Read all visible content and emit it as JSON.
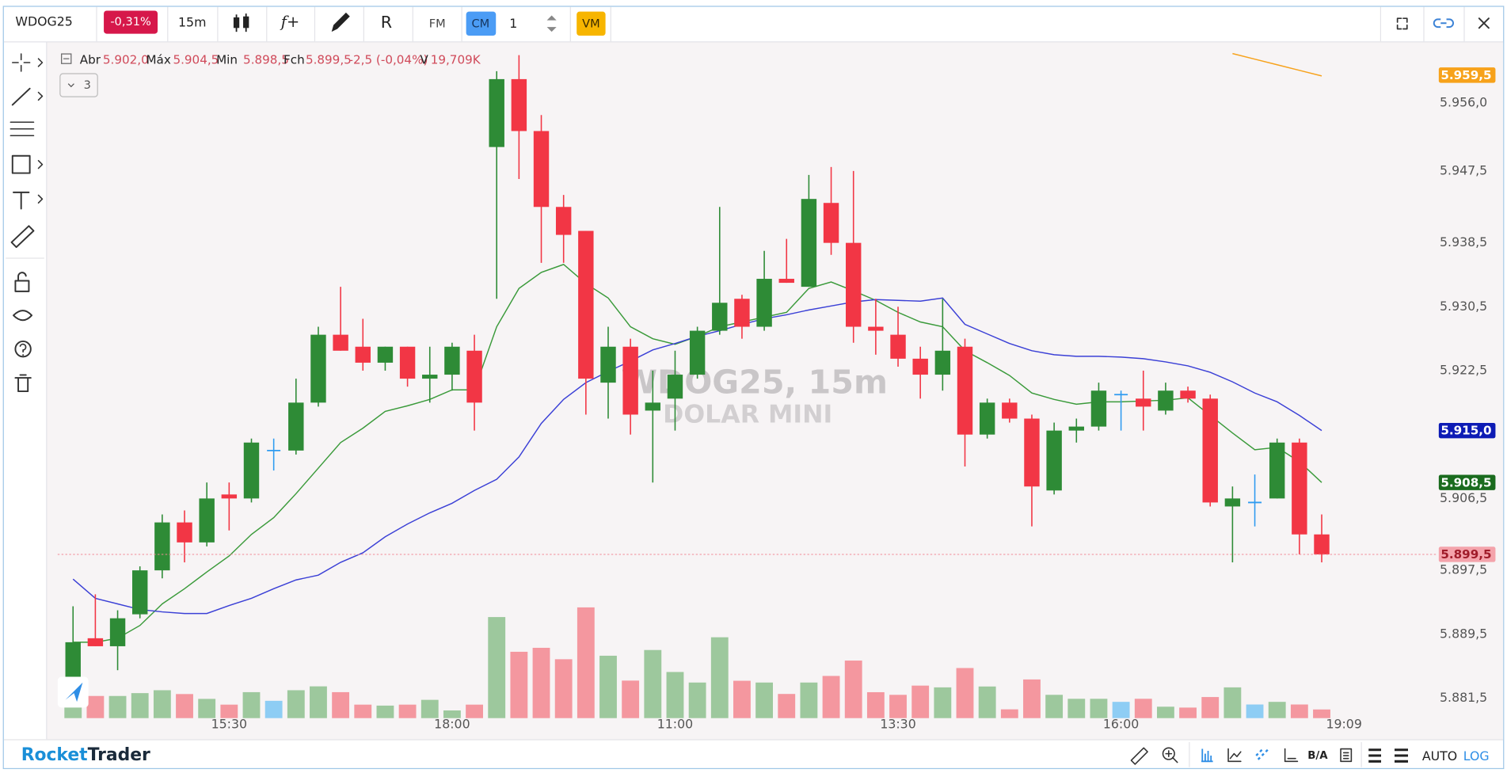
{
  "toolbar": {
    "symbol": "WDOG25",
    "change": "-0,31%",
    "interval": "15m",
    "indicator": "f+",
    "replay": "R",
    "fm": "FM",
    "cm": "CM",
    "count": "1",
    "vm": "VM"
  },
  "legend": {
    "open_label": "Abr",
    "open": "5.902,0",
    "high_label": "Máx",
    "high": "5.904,5",
    "low_label": "Min",
    "low": "5.898,5",
    "close_label": "Fch",
    "close": "5.899,5",
    "change": "-2,5 (-0,04%)",
    "volume_label": "V",
    "volume": "19,709K",
    "collapse": "3"
  },
  "watermark": {
    "title": "WDOG25, 15m",
    "subtitle": "DOLAR MINI"
  },
  "footer": {
    "brand_1": "Rocket",
    "brand_2": "Trader",
    "ba": "B/A",
    "auto": "AUTO",
    "log": "LOG"
  },
  "chart_data": {
    "type": "candlestick",
    "categories": [
      null,
      null,
      null,
      null,
      null,
      null,
      null,
      "15:30",
      null,
      null,
      null,
      null,
      null,
      null,
      null,
      null,
      null,
      "18:00",
      null,
      null,
      null,
      null,
      null,
      null,
      null,
      null,
      null,
      "11:00",
      null,
      null,
      null,
      null,
      null,
      null,
      null,
      null,
      null,
      "13:30",
      null,
      null,
      null,
      null,
      null,
      null,
      null,
      null,
      null,
      "16:00",
      null,
      null,
      null,
      null,
      null,
      null,
      null,
      null,
      null
    ],
    "current_time": "19:09",
    "open": [
      5884.0,
      5889.0,
      5888.0,
      5892.0,
      5897.5,
      5903.5,
      5901.0,
      5907.0,
      5906.5,
      5912.5,
      5912.5,
      5918.5,
      5927.0,
      5925.5,
      5923.5,
      5925.5,
      5921.5,
      5922.0,
      5925.0,
      5950.5,
      5959.0,
      5952.5,
      5943.0,
      5940.0,
      5921.0,
      5925.5,
      5917.5,
      5919.0,
      5922.0,
      5927.5,
      5931.5,
      5928.0,
      5934.0,
      5933.0,
      5943.5,
      5938.5,
      5928.0,
      5927.0,
      5924.0,
      5922.0,
      5925.5,
      5914.5,
      5918.5,
      5916.5,
      5907.5,
      5915.0,
      5915.5,
      5919.5,
      5919.0,
      5917.5,
      5920.0,
      5919.0,
      5905.5,
      5906.0,
      5906.5,
      5913.5,
      5902.0
    ],
    "high": [
      5893.0,
      5894.5,
      5892.5,
      5898.0,
      5904.5,
      5905.0,
      5908.5,
      5908.5,
      5914.0,
      5914.0,
      5921.5,
      5928.0,
      5933.0,
      5929.0,
      5925.5,
      5925.5,
      5925.5,
      5926.0,
      5927.0,
      5960.0,
      5962.0,
      5954.5,
      5944.5,
      5940.0,
      5928.0,
      5926.5,
      5922.5,
      5925.0,
      5928.0,
      5943.0,
      5932.0,
      5937.5,
      5939.0,
      5947.0,
      5948.0,
      5947.5,
      5931.5,
      5930.5,
      5925.5,
      5931.5,
      5926.5,
      5919.0,
      5919.0,
      5917.0,
      5916.0,
      5916.5,
      5921.0,
      5920.0,
      5922.5,
      5921.0,
      5920.5,
      5919.5,
      5908.0,
      5909.5,
      5914.0,
      5914.0,
      5904.5
    ],
    "low": [
      5884.0,
      5888.0,
      5885.0,
      5891.5,
      5896.5,
      5898.5,
      5900.5,
      5902.5,
      5906.0,
      5910.0,
      5912.0,
      5918.0,
      5925.0,
      5922.5,
      5922.5,
      5920.5,
      5918.5,
      5920.0,
      5915.0,
      5931.5,
      5946.5,
      5936.0,
      5936.0,
      5917.0,
      5916.5,
      5914.5,
      5908.5,
      5915.0,
      5921.5,
      5927.0,
      5926.5,
      5927.5,
      5933.5,
      5933.0,
      5937.0,
      5926.0,
      5924.5,
      5923.0,
      5919.0,
      5920.0,
      5910.5,
      5914.0,
      5916.0,
      5903.0,
      5907.0,
      5913.5,
      5915.0,
      5915.0,
      5915.0,
      5917.0,
      5918.5,
      5905.5,
      5898.5,
      5903.0,
      5906.5,
      5899.5,
      5898.5
    ],
    "close": [
      5888.5,
      5888.0,
      5891.5,
      5897.5,
      5903.5,
      5901.0,
      5906.5,
      5906.5,
      5913.5,
      5912.5,
      5918.5,
      5927.0,
      5925.0,
      5923.5,
      5925.5,
      5921.5,
      5922.0,
      5925.5,
      5918.5,
      5959.0,
      5952.5,
      5943.0,
      5939.5,
      5921.5,
      5925.5,
      5917.0,
      5918.5,
      5922.0,
      5927.5,
      5931.0,
      5928.0,
      5934.0,
      5933.5,
      5944.0,
      5938.5,
      5928.0,
      5927.5,
      5924.0,
      5922.0,
      5925.0,
      5914.5,
      5918.5,
      5916.5,
      5908.0,
      5915.0,
      5915.5,
      5920.0,
      5919.5,
      5918.0,
      5920.0,
      5919.0,
      5906.0,
      5906.5,
      5906.0,
      5913.5,
      5902.0,
      5899.5
    ],
    "volume": [
      30.7,
      50.4,
      50.4,
      56.9,
      63.5,
      54.8,
      43.8,
      30.7,
      59.1,
      39.4,
      63.5,
      72.3,
      59.1,
      30.7,
      28.5,
      30.7,
      41.6,
      17.5,
      30.7,
      230,
      151,
      160,
      134,
      252,
      142,
      85.4,
      155,
      105,
      81,
      184,
      85,
      81,
      55,
      81,
      96,
      131,
      59,
      53,
      74,
      70,
      114,
      72,
      20,
      88,
      53,
      44,
      44,
      37,
      44,
      26,
      24,
      48,
      70,
      31,
      37,
      31,
      19.709
    ],
    "vlim": [
      0,
      350
    ],
    "colors": {
      "up": "#2e8b36",
      "down": "#f23645",
      "flat": "#2f9bf0",
      "vol_up": "#9dc89d",
      "vol_down": "#f4979f",
      "vol_flat": "#8ecdf4"
    },
    "series": [
      {
        "color": "#3a9a3a",
        "values": [
          5888.5,
          5888.5,
          5889.0,
          5890.6,
          5893.3,
          5895.2,
          5897.3,
          5899.3,
          5902.0,
          5904.1,
          5907.1,
          5910.3,
          5913.5,
          5915.3,
          5917.4,
          5918.1,
          5918.9,
          5920.1,
          5920.1,
          5928.0,
          5932.8,
          5934.8,
          5935.8,
          5933.4,
          5931.6,
          5928.0,
          5926.5,
          5925.8,
          5926.8,
          5928.0,
          5928.6,
          5929.2,
          5929.8,
          5932.8,
          5933.6,
          5932.5,
          5931.3,
          5929.8,
          5928.6,
          5928.0,
          5925.0,
          5923.5,
          5921.9,
          5919.7,
          5918.9,
          5918.3,
          5918.6,
          5918.6,
          5918.7,
          5918.8,
          5919.1,
          5916.9,
          5914.7,
          5912.6,
          5912.9,
          5911.1,
          5908.5
        ]
      },
      {
        "color": "#3b40d6",
        "values": [
          5896.4,
          5894.0,
          5893.3,
          5892.6,
          5892.3,
          5892.1,
          5892.1,
          5893.1,
          5894.0,
          5895.2,
          5896.3,
          5896.9,
          5898.5,
          5899.7,
          5901.7,
          5903.3,
          5904.7,
          5905.9,
          5907.5,
          5908.9,
          5911.7,
          5915.9,
          5918.9,
          5921.0,
          5922.4,
          5923.7,
          5925.1,
          5925.9,
          5926.8,
          5927.5,
          5928.3,
          5929.0,
          5929.5,
          5930.1,
          5930.6,
          5931.1,
          5931.4,
          5931.3,
          5931.2,
          5931.6,
          5928.3,
          5927.1,
          5925.9,
          5925.0,
          5924.5,
          5924.3,
          5924.3,
          5924.2,
          5924.0,
          5923.6,
          5923.1,
          5922.3,
          5921.1,
          5919.7,
          5918.6,
          5916.9,
          5915.0
        ]
      },
      {
        "color": "#f7a21b",
        "values": [
          null,
          null,
          null,
          null,
          null,
          null,
          null,
          null,
          null,
          null,
          null,
          null,
          null,
          null,
          null,
          null,
          null,
          null,
          null,
          null,
          null,
          null,
          null,
          null,
          null,
          null,
          null,
          null,
          null,
          null,
          null,
          null,
          null,
          null,
          null,
          null,
          null,
          null,
          null,
          null,
          null,
          null,
          null,
          null,
          null,
          null,
          null,
          null,
          null,
          null,
          null,
          null,
          5962.2,
          5961.5,
          5960.8,
          5960.1,
          5959.4
        ]
      }
    ],
    "price_labels": [
      {
        "value": 5959.5,
        "label": "5.959,5",
        "color": "#f7a21b",
        "text_color": "#ffffff"
      },
      {
        "value": 5915.0,
        "label": "5.915,0",
        "color": "#0d1bb5",
        "text_color": "#ffffff"
      },
      {
        "value": 5908.5,
        "label": "5.908,5",
        "color": "#1a6b1e",
        "text_color": "#ffffff"
      },
      {
        "value": 5899.5,
        "label": "5.899,5",
        "color": "#f4a3ab",
        "text_color": "#a01c2a",
        "line": true
      }
    ],
    "ylim": [
      5879.0,
      5963.6
    ],
    "yticks": [
      {
        "value": 5956.0,
        "label": "5.956,0"
      },
      {
        "value": 5947.5,
        "label": "5.947,5"
      },
      {
        "value": 5938.5,
        "label": "5.938,5"
      },
      {
        "value": 5930.5,
        "label": "5.930,5"
      },
      {
        "value": 5922.5,
        "label": "5.922,5"
      },
      {
        "value": 5906.5,
        "label": "5.906,5"
      },
      {
        "value": 5897.5,
        "label": "5.897,5"
      },
      {
        "value": 5889.5,
        "label": "5.889,5"
      },
      {
        "value": 5881.5,
        "label": "5.881,5"
      }
    ],
    "grid": false
  }
}
